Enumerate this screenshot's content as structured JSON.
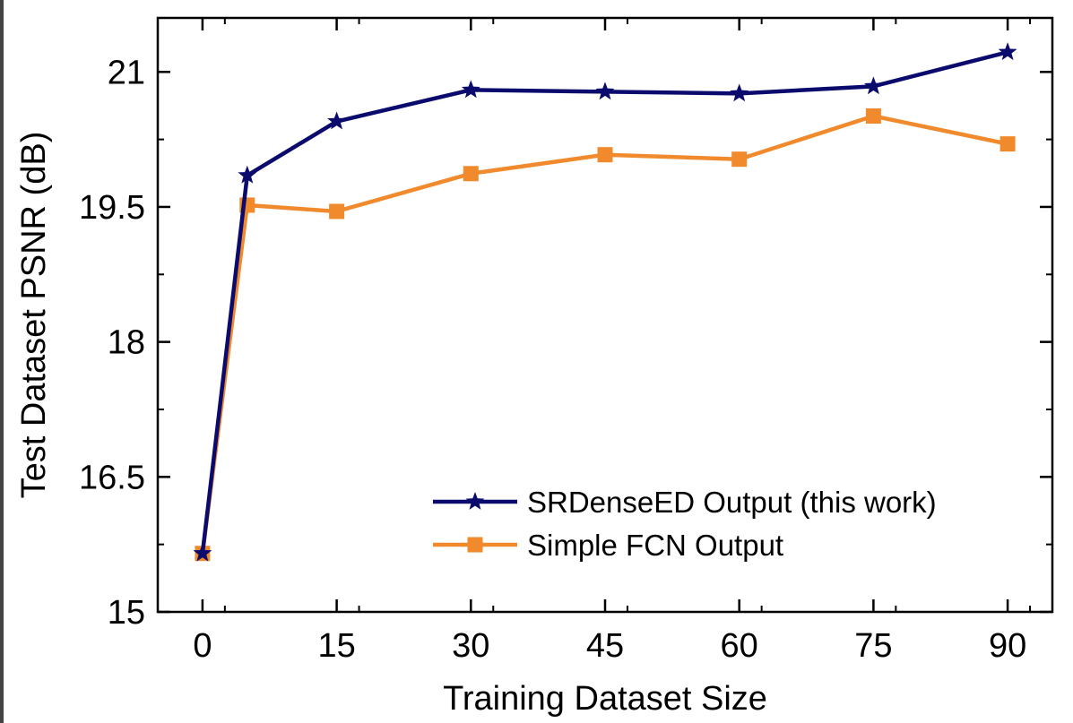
{
  "chart_data": {
    "type": "line",
    "title": "",
    "xlabel": "Training Dataset Size",
    "ylabel": "Test Dataset PSNR (dB)",
    "x": [
      0,
      5,
      15,
      30,
      45,
      60,
      75,
      90
    ],
    "xticks": [
      "0",
      "15",
      "30",
      "45",
      "60",
      "75",
      "90"
    ],
    "xtick_values": [
      0,
      15,
      30,
      45,
      60,
      75,
      90
    ],
    "yticks": [
      "15",
      "16.5",
      "18",
      "19.5",
      "21"
    ],
    "ytick_values": [
      15,
      16.5,
      18,
      19.5,
      21
    ],
    "xlim": [
      -5,
      95
    ],
    "ylim": [
      15,
      21.6
    ],
    "grid": false,
    "legend_position": "bottom-right",
    "series": [
      {
        "name": "SRDenseED Output (this work)",
        "color": "#0b0b6e",
        "marker": "star",
        "values": [
          15.65,
          19.85,
          20.45,
          20.8,
          20.78,
          20.76,
          20.84,
          21.22
        ]
      },
      {
        "name": "Simple FCN Output",
        "color": "#f08a2c",
        "marker": "square",
        "values": [
          15.65,
          19.52,
          19.45,
          19.87,
          20.08,
          20.03,
          20.51,
          20.2
        ]
      }
    ]
  }
}
